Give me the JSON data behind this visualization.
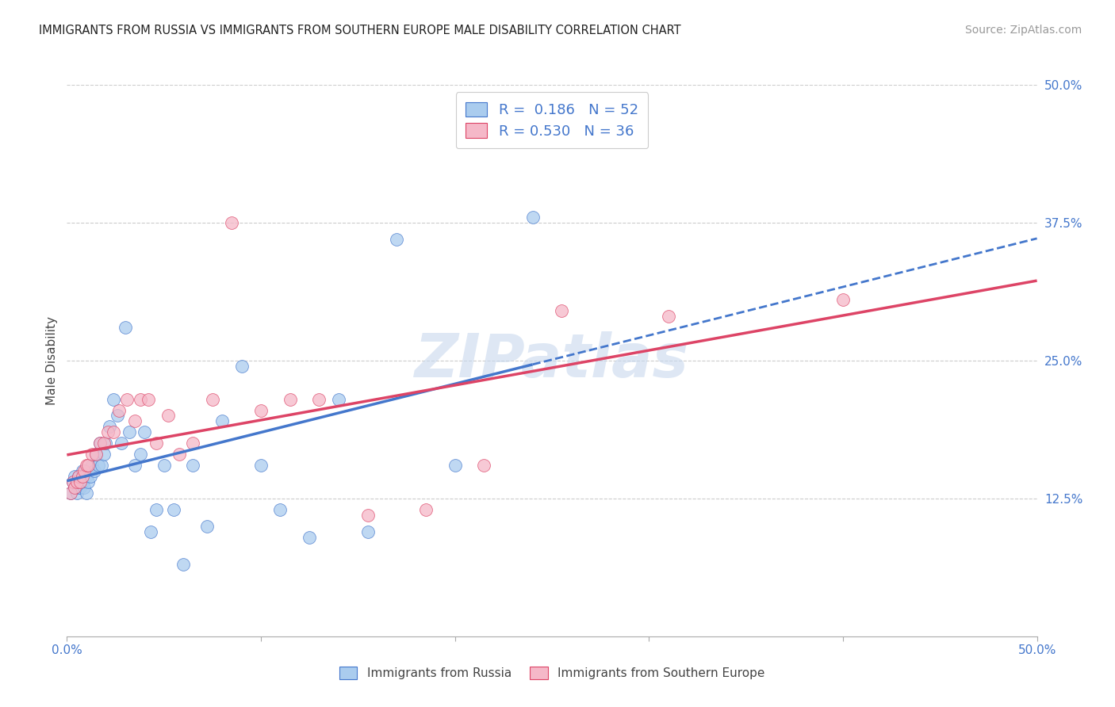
{
  "title": "IMMIGRANTS FROM RUSSIA VS IMMIGRANTS FROM SOUTHERN EUROPE MALE DISABILITY CORRELATION CHART",
  "source": "Source: ZipAtlas.com",
  "ylabel": "Male Disability",
  "xlim": [
    0.0,
    0.5
  ],
  "ylim": [
    0.0,
    0.5
  ],
  "ytick_vals_right": [
    0.125,
    0.25,
    0.375,
    0.5
  ],
  "color_russia": "#aaccee",
  "color_s_europe": "#f5b8c8",
  "line_color_russia": "#4477cc",
  "line_color_s_europe": "#dd4466",
  "R_russia": 0.186,
  "N_russia": 52,
  "R_s_europe": 0.53,
  "N_s_europe": 36,
  "watermark": "ZIPatlas",
  "russia_x": [
    0.002,
    0.003,
    0.004,
    0.004,
    0.005,
    0.005,
    0.006,
    0.006,
    0.007,
    0.007,
    0.008,
    0.008,
    0.009,
    0.009,
    0.01,
    0.01,
    0.011,
    0.012,
    0.013,
    0.014,
    0.015,
    0.016,
    0.017,
    0.018,
    0.019,
    0.02,
    0.022,
    0.024,
    0.026,
    0.028,
    0.03,
    0.032,
    0.035,
    0.038,
    0.04,
    0.043,
    0.046,
    0.05,
    0.055,
    0.06,
    0.065,
    0.072,
    0.08,
    0.09,
    0.1,
    0.11,
    0.125,
    0.14,
    0.155,
    0.17,
    0.2,
    0.24
  ],
  "russia_y": [
    0.13,
    0.14,
    0.135,
    0.145,
    0.13,
    0.14,
    0.135,
    0.145,
    0.135,
    0.14,
    0.14,
    0.15,
    0.145,
    0.135,
    0.145,
    0.13,
    0.14,
    0.145,
    0.155,
    0.15,
    0.165,
    0.155,
    0.175,
    0.155,
    0.165,
    0.175,
    0.19,
    0.215,
    0.2,
    0.175,
    0.28,
    0.185,
    0.155,
    0.165,
    0.185,
    0.095,
    0.115,
    0.155,
    0.115,
    0.065,
    0.155,
    0.1,
    0.195,
    0.245,
    0.155,
    0.115,
    0.09,
    0.215,
    0.095,
    0.36,
    0.155,
    0.38
  ],
  "s_europe_x": [
    0.002,
    0.003,
    0.004,
    0.005,
    0.006,
    0.007,
    0.008,
    0.009,
    0.01,
    0.011,
    0.013,
    0.015,
    0.017,
    0.019,
    0.021,
    0.024,
    0.027,
    0.031,
    0.035,
    0.038,
    0.042,
    0.046,
    0.052,
    0.058,
    0.065,
    0.075,
    0.085,
    0.1,
    0.115,
    0.13,
    0.155,
    0.185,
    0.215,
    0.255,
    0.31,
    0.4
  ],
  "s_europe_y": [
    0.13,
    0.14,
    0.135,
    0.14,
    0.145,
    0.14,
    0.145,
    0.15,
    0.155,
    0.155,
    0.165,
    0.165,
    0.175,
    0.175,
    0.185,
    0.185,
    0.205,
    0.215,
    0.195,
    0.215,
    0.215,
    0.175,
    0.2,
    0.165,
    0.175,
    0.215,
    0.375,
    0.205,
    0.215,
    0.215,
    0.11,
    0.115,
    0.155,
    0.295,
    0.29,
    0.305
  ]
}
